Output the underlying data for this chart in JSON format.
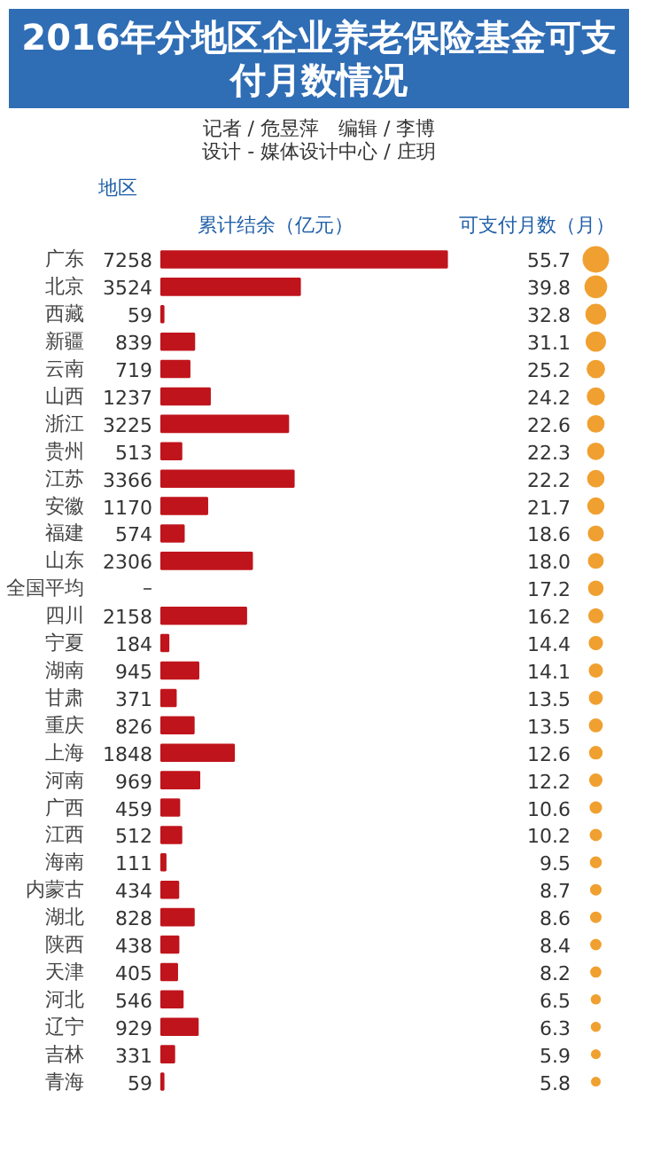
{
  "chart_data": [
    {
      "type": "bar",
      "orientation": "horizontal",
      "title": "2016年分地区企业养老保险基金可支付月数情况",
      "subtitle": "记者 / 危昱萍　编辑 / 李博",
      "annotations": [
        "设计 - 媒体设计中心 / 庄玥"
      ],
      "xlabel": "累计结余（亿元）",
      "ylabel": "地区",
      "categories": [
        "广东",
        "北京",
        "西藏",
        "新疆",
        "云南",
        "山西",
        "浙江",
        "贵州",
        "江苏",
        "安徽",
        "福建",
        "山东",
        "全国平均",
        "四川",
        "宁夏",
        "湖南",
        "甘肃",
        "重庆",
        "上海",
        "河南",
        "广西",
        "江西",
        "海南",
        "内蒙古",
        "湖北",
        "陕西",
        "天津",
        "河北",
        "辽宁",
        "吉林",
        "青海"
      ],
      "values": [
        7258,
        3524,
        59,
        839,
        719,
        1237,
        3225,
        513,
        3366,
        1170,
        574,
        2306,
        null,
        2158,
        184,
        945,
        371,
        826,
        1848,
        969,
        459,
        512,
        111,
        434,
        828,
        438,
        405,
        546,
        929,
        331,
        59
      ],
      "value_labels": [
        "7258",
        "3524",
        "59",
        "839",
        "719",
        "1237",
        "3225",
        "513",
        "3366",
        "1170",
        "574",
        "2306",
        "–",
        "2158",
        "184",
        "945",
        "371",
        "826",
        "1848",
        "969",
        "459",
        "512",
        "111",
        "434",
        "828",
        "438",
        "405",
        "546",
        "929",
        "331",
        "59"
      ],
      "color": "#c0141c",
      "tick_labels": "y"
    },
    {
      "type": "other",
      "xlabel": "可支付月数（月）",
      "values": [
        55.7,
        39.8,
        32.8,
        31.1,
        25.2,
        24.2,
        22.6,
        22.3,
        22.2,
        21.7,
        18.6,
        18.0,
        17.2,
        16.2,
        14.4,
        14.1,
        13.5,
        13.5,
        12.6,
        12.2,
        10.6,
        10.2,
        9.5,
        8.7,
        8.6,
        8.4,
        8.2,
        6.5,
        6.3,
        5.9,
        5.8
      ],
      "value_labels": [
        "55.7",
        "39.8",
        "32.8",
        "31.1",
        "25.2",
        "24.2",
        "22.6",
        "22.3",
        "22.2",
        "21.7",
        "18.6",
        "18.0",
        "17.2",
        "16.2",
        "14.4",
        "14.1",
        "13.5",
        "13.5",
        "12.6",
        "12.2",
        "10.6",
        "10.2",
        "9.5",
        "8.7",
        "8.6",
        "8.4",
        "8.2",
        "6.5",
        "6.3",
        "5.9",
        "5.8"
      ],
      "color": "#f0a030"
    }
  ]
}
